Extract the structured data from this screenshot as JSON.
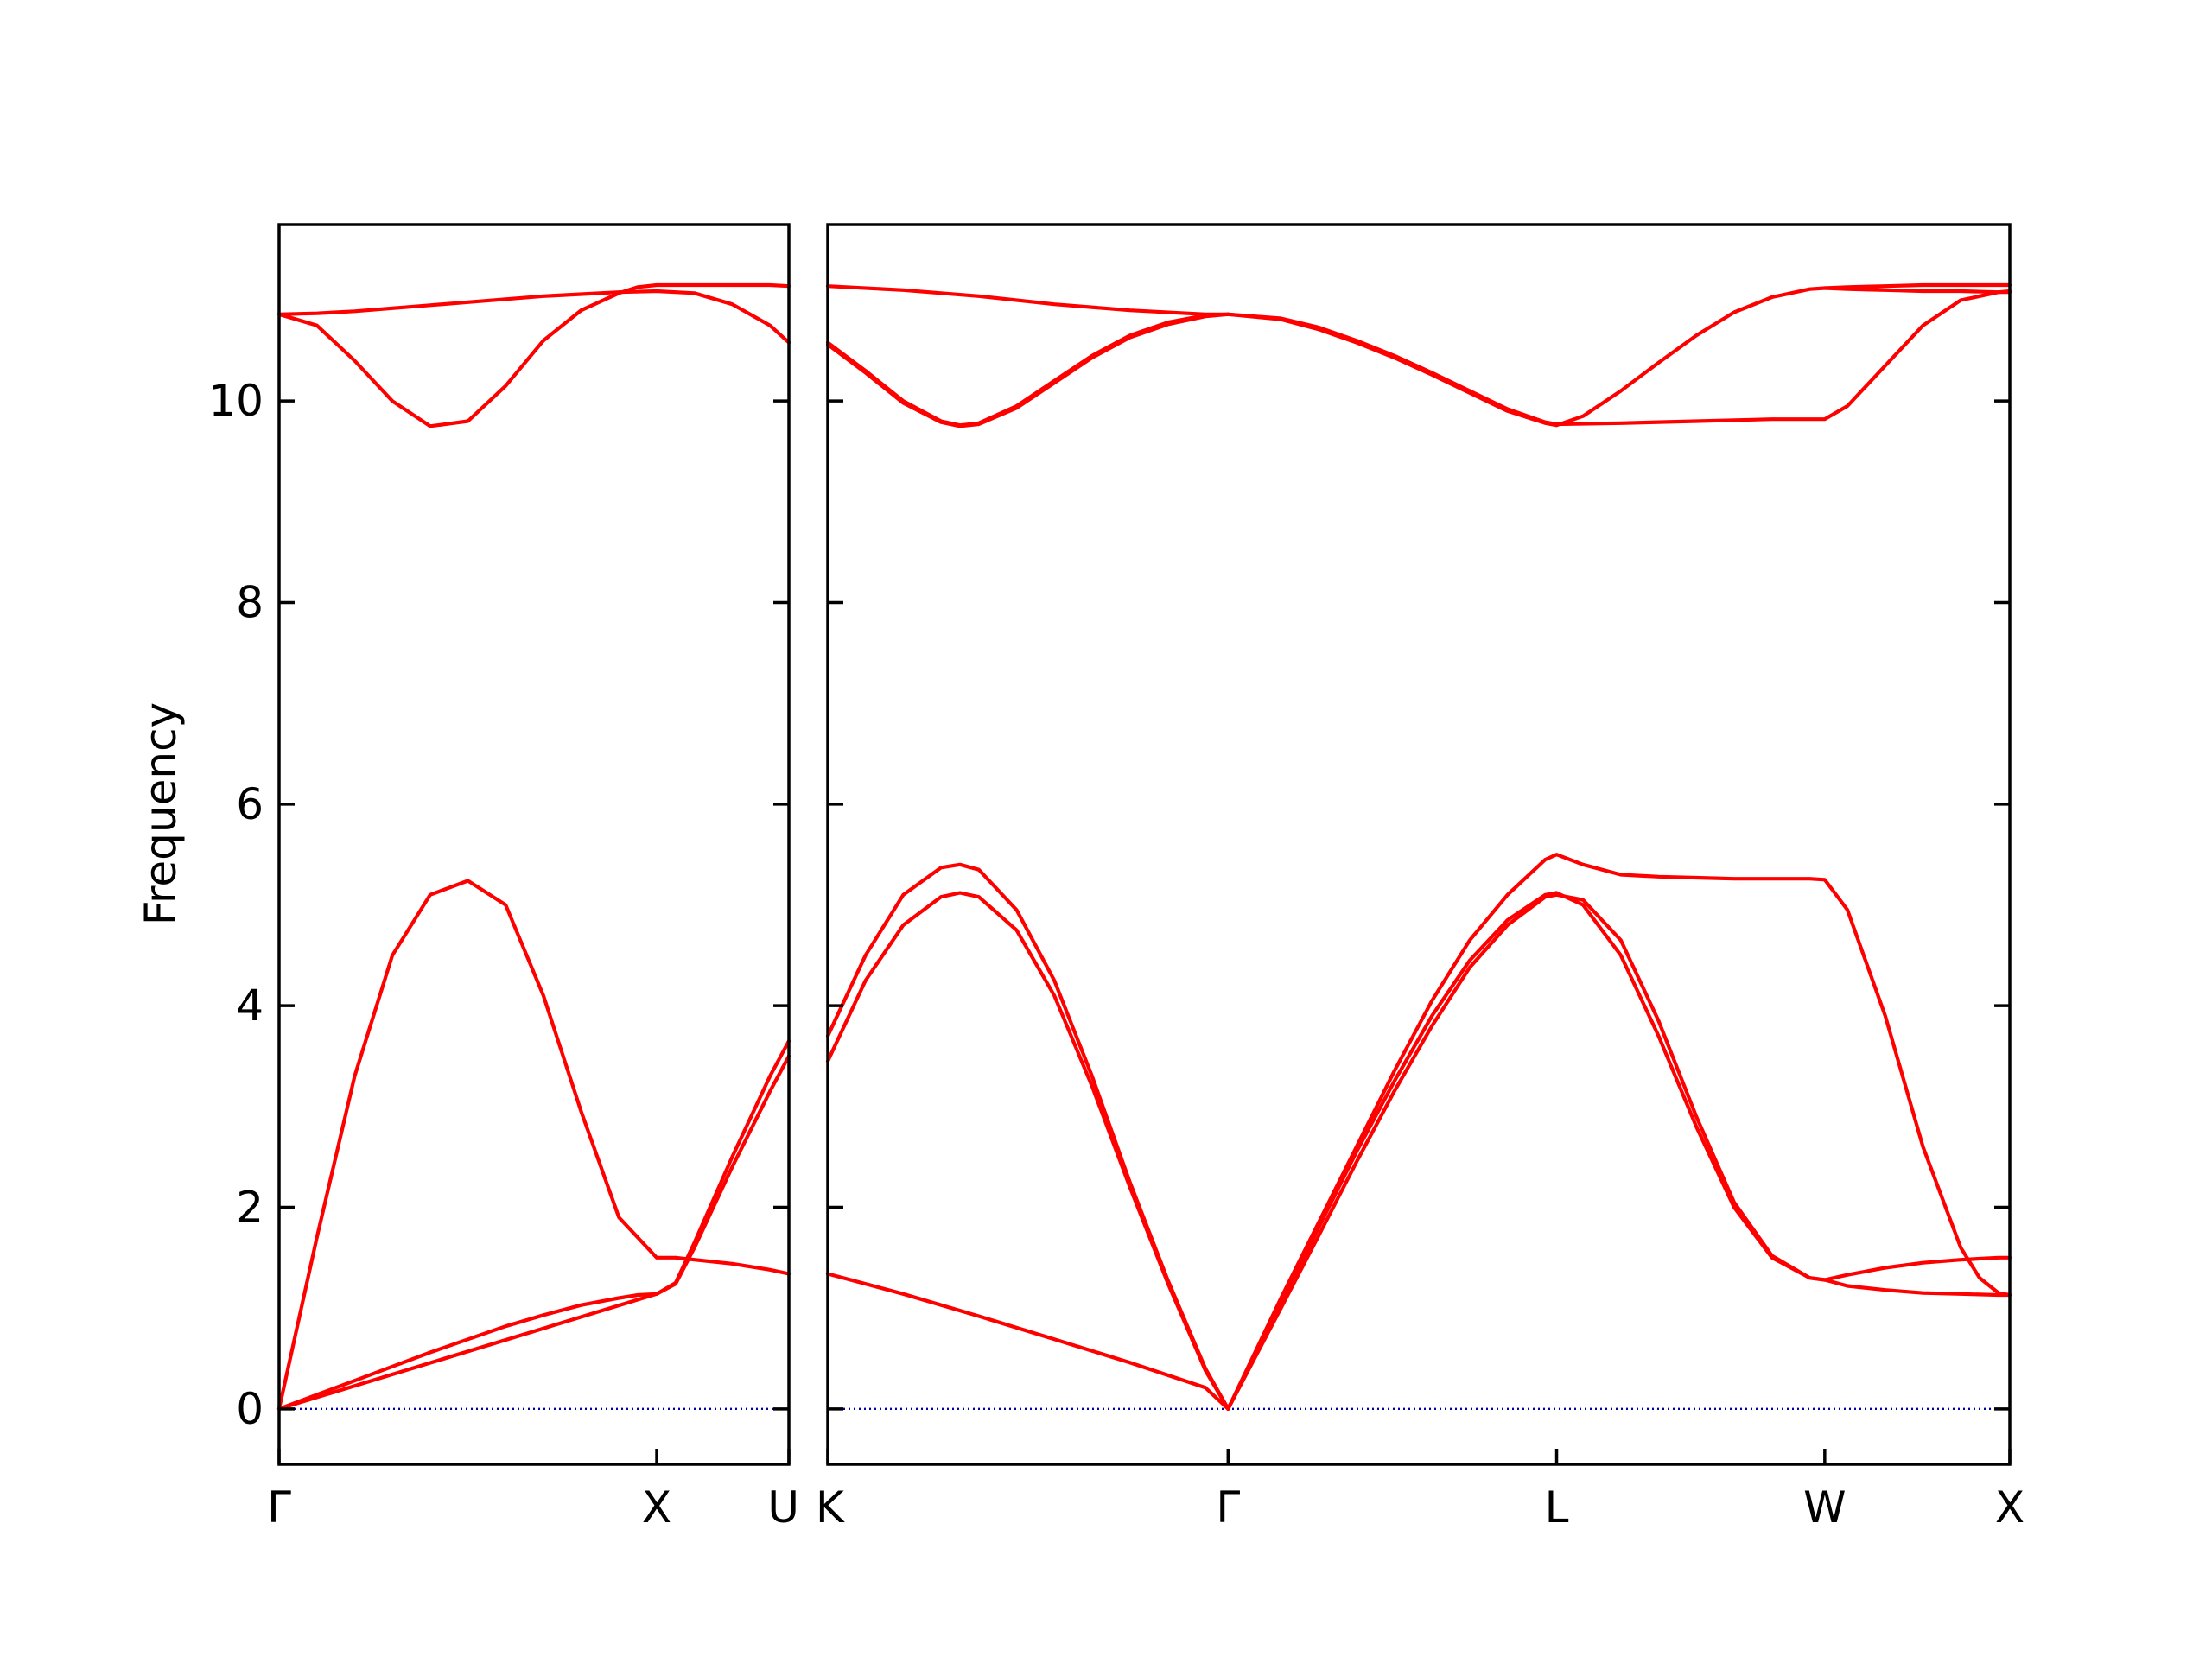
{
  "chart_data": {
    "type": "line",
    "ylabel": "Frequency",
    "xlabel": "",
    "ylim": [
      -0.55,
      11.75
    ],
    "yticks": [
      0,
      2,
      4,
      6,
      8,
      10
    ],
    "band_color": "#ff0000",
    "zero_line_color": "#0000aa",
    "grid": false,
    "legend": "none",
    "panels": [
      {
        "xlim": [
          0,
          1.35
        ],
        "xticks": [
          {
            "x": 0,
            "label": "Γ"
          },
          {
            "x": 1.0,
            "label": "X"
          },
          {
            "x": 1.35,
            "label": "U"
          }
        ],
        "series": [
          {
            "x": [
              0,
              0.1,
              0.2,
              0.3,
              0.4,
              0.5,
              0.6,
              0.7,
              0.8,
              0.9,
              1.0,
              1.05,
              1.1,
              1.2,
              1.3,
              1.35
            ],
            "y": [
              0,
              1.7,
              3.3,
              4.5,
              5.1,
              5.24,
              5.0,
              4.1,
              2.95,
              1.9,
              1.5,
              1.5,
              1.48,
              1.44,
              1.38,
              1.34
            ]
          },
          {
            "x": [
              0,
              0.1,
              0.2,
              0.3,
              0.4,
              0.5,
              0.6,
              0.7,
              0.8,
              0.9,
              0.95,
              1.0,
              1.05,
              1.1,
              1.2,
              1.3,
              1.35
            ],
            "y": [
              0,
              0.14,
              0.28,
              0.42,
              0.56,
              0.69,
              0.82,
              0.93,
              1.03,
              1.1,
              1.13,
              1.14,
              1.25,
              1.65,
              2.5,
              3.3,
              3.65
            ]
          },
          {
            "x": [
              0,
              1.0,
              1.05,
              1.1,
              1.2,
              1.3,
              1.35
            ],
            "y": [
              0,
              1.14,
              1.24,
              1.6,
              2.4,
              3.15,
              3.5
            ]
          },
          {
            "x": [
              0,
              0.1,
              0.2,
              0.3,
              0.4,
              0.5,
              0.6,
              0.7,
              0.8,
              0.9,
              1.0,
              1.1,
              1.2,
              1.3,
              1.35
            ],
            "y": [
              10.86,
              10.87,
              10.89,
              10.92,
              10.95,
              10.98,
              11.01,
              11.04,
              11.06,
              11.08,
              11.09,
              11.07,
              10.96,
              10.75,
              10.58
            ]
          },
          {
            "x": [
              0,
              0.1,
              0.2,
              0.3,
              0.4,
              0.5,
              0.6,
              0.7,
              0.8,
              0.9,
              0.95,
              1.0,
              1.1,
              1.2,
              1.3,
              1.35
            ],
            "y": [
              10.86,
              10.75,
              10.4,
              10.0,
              9.75,
              9.8,
              10.15,
              10.6,
              10.9,
              11.07,
              11.13,
              11.15,
              11.15,
              11.15,
              11.15,
              11.14
            ]
          }
        ]
      },
      {
        "xlim": [
          0,
          3.13
        ],
        "xticks": [
          {
            "x": 0,
            "label": "K"
          },
          {
            "x": 1.06,
            "label": "Γ"
          },
          {
            "x": 1.93,
            "label": "L"
          },
          {
            "x": 2.64,
            "label": "W"
          },
          {
            "x": 3.13,
            "label": "X"
          }
        ],
        "series": [
          {
            "x": [
              0,
              0.2,
              0.4,
              0.6,
              0.8,
              1.0,
              1.06
            ],
            "y": [
              1.34,
              1.14,
              0.92,
              0.69,
              0.46,
              0.21,
              0
            ]
          },
          {
            "x": [
              0,
              0.1,
              0.2,
              0.3,
              0.35,
              0.4,
              0.5,
              0.6,
              0.7,
              0.8,
              0.9,
              1.0,
              1.06
            ],
            "y": [
              3.45,
              4.25,
              4.8,
              5.08,
              5.12,
              5.08,
              4.75,
              4.1,
              3.2,
              2.2,
              1.25,
              0.38,
              0
            ]
          },
          {
            "x": [
              0,
              0.1,
              0.2,
              0.3,
              0.35,
              0.4,
              0.5,
              0.6,
              0.7,
              0.8,
              0.9,
              1.0,
              1.06
            ],
            "y": [
              3.7,
              4.5,
              5.1,
              5.37,
              5.4,
              5.35,
              4.95,
              4.25,
              3.3,
              2.25,
              1.28,
              0.4,
              0
            ]
          },
          {
            "x": [
              1.06,
              1.2,
              1.3,
              1.4,
              1.5,
              1.6,
              1.7,
              1.8,
              1.9,
              1.93,
              2.0,
              2.1,
              2.2,
              2.3,
              2.4,
              2.5,
              2.6,
              2.64
            ],
            "y": [
              0,
              1.05,
              1.8,
              2.55,
              3.25,
              3.9,
              4.45,
              4.85,
              5.1,
              5.12,
              5.0,
              4.5,
              3.7,
              2.8,
              2.0,
              1.5,
              1.3,
              1.28
            ]
          },
          {
            "x": [
              1.06,
              1.2,
              1.3,
              1.4,
              1.5,
              1.6,
              1.7,
              1.8,
              1.9,
              1.93,
              2.0,
              2.1,
              2.2,
              2.3,
              2.4,
              2.5,
              2.6,
              2.64
            ],
            "y": [
              0,
              1.0,
              1.72,
              2.45,
              3.15,
              3.8,
              4.38,
              4.8,
              5.08,
              5.1,
              5.05,
              4.65,
              3.85,
              2.9,
              2.05,
              1.52,
              1.3,
              1.28
            ]
          },
          {
            "x": [
              1.06,
              1.2,
              1.3,
              1.4,
              1.5,
              1.6,
              1.7,
              1.8,
              1.9,
              1.93,
              2.0,
              2.1,
              2.2,
              2.3,
              2.4,
              2.5,
              2.6,
              2.64,
              2.7,
              2.8,
              2.9,
              3.0,
              3.05,
              3.1,
              3.13
            ],
            "y": [
              0,
              1.1,
              1.85,
              2.6,
              3.35,
              4.05,
              4.65,
              5.1,
              5.45,
              5.5,
              5.4,
              5.3,
              5.28,
              5.27,
              5.26,
              5.26,
              5.26,
              5.25,
              4.95,
              3.9,
              2.6,
              1.6,
              1.3,
              1.15,
              1.13
            ]
          },
          {
            "x": [
              2.64,
              2.7,
              2.8,
              2.9,
              3.0,
              3.1,
              3.13
            ],
            "y": [
              1.28,
              1.33,
              1.4,
              1.45,
              1.48,
              1.5,
              1.5
            ]
          },
          {
            "x": [
              2.64,
              2.7,
              2.8,
              2.9,
              3.0,
              3.1,
              3.13
            ],
            "y": [
              1.28,
              1.22,
              1.18,
              1.15,
              1.14,
              1.13,
              1.13
            ]
          },
          {
            "x": [
              0,
              0.2,
              0.4,
              0.6,
              0.8,
              1.0,
              1.06
            ],
            "y": [
              11.14,
              11.1,
              11.04,
              10.96,
              10.9,
              10.86,
              10.86
            ]
          },
          {
            "x": [
              0,
              0.1,
              0.2,
              0.3,
              0.35,
              0.4,
              0.5,
              0.6,
              0.7,
              0.8,
              0.9,
              1.0,
              1.06
            ],
            "y": [
              10.58,
              10.3,
              10.0,
              9.8,
              9.76,
              9.78,
              9.95,
              10.2,
              10.45,
              10.65,
              10.78,
              10.85,
              10.86
            ]
          },
          {
            "x": [
              0,
              0.1,
              0.2,
              0.3,
              0.35,
              0.4,
              0.5,
              0.6,
              0.7,
              0.8,
              0.9,
              1.0,
              1.06
            ],
            "y": [
              10.56,
              10.28,
              9.98,
              9.79,
              9.75,
              9.77,
              9.93,
              10.18,
              10.43,
              10.63,
              10.76,
              10.84,
              10.86
            ]
          },
          {
            "x": [
              1.06,
              1.2,
              1.3,
              1.4,
              1.5,
              1.6,
              1.7,
              1.8,
              1.9,
              1.93
            ],
            "y": [
              10.86,
              10.82,
              10.73,
              10.6,
              10.45,
              10.28,
              10.1,
              9.92,
              9.79,
              9.77
            ]
          },
          {
            "x": [
              1.06,
              1.2,
              1.3,
              1.4,
              1.5,
              1.6,
              1.7,
              1.8,
              1.9,
              1.93
            ],
            "y": [
              10.86,
              10.81,
              10.71,
              10.58,
              10.43,
              10.26,
              10.08,
              9.9,
              9.78,
              9.76
            ]
          },
          {
            "x": [
              1.93,
              2.0,
              2.1,
              2.2,
              2.3,
              2.4,
              2.5,
              2.6,
              2.64,
              2.7,
              2.8,
              2.9,
              3.0,
              3.1,
              3.13
            ],
            "y": [
              9.76,
              9.85,
              10.1,
              10.38,
              10.65,
              10.88,
              11.03,
              11.11,
              11.12,
              11.13,
              11.14,
              11.15,
              11.15,
              11.15,
              11.15
            ]
          },
          {
            "x": [
              1.93,
              2.1,
              2.3,
              2.5,
              2.64,
              2.7,
              2.8,
              2.9,
              3.0,
              3.1,
              3.13
            ],
            "y": [
              9.77,
              9.78,
              9.8,
              9.82,
              9.82,
              9.95,
              10.35,
              10.75,
              11.0,
              11.08,
              11.09
            ]
          },
          {
            "x": [
              2.64,
              2.7,
              2.8,
              2.9,
              3.0,
              3.1,
              3.13
            ],
            "y": [
              11.12,
              11.11,
              11.1,
              11.09,
              11.09,
              11.08,
              11.08
            ]
          }
        ]
      }
    ]
  }
}
